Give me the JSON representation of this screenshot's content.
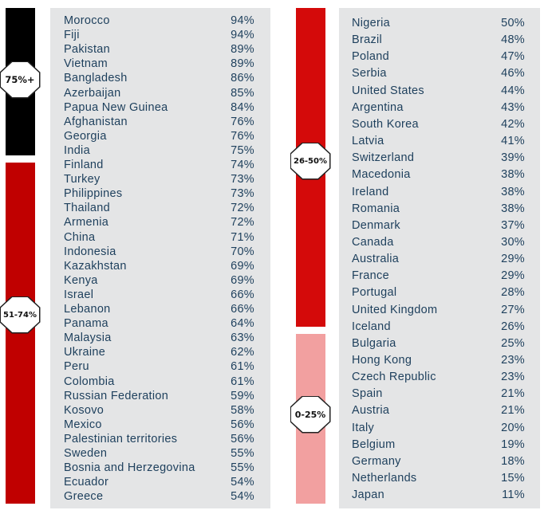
{
  "chart_data": {
    "type": "table",
    "bands": [
      {
        "label": "75%+",
        "color": "#000000"
      },
      {
        "label": "51-74%",
        "color": "#c00000"
      },
      {
        "label": "26-50%",
        "color": "#d40a0a"
      },
      {
        "label": "0-25%",
        "color": "#f2a0a0"
      }
    ],
    "left_rows": [
      {
        "country": "Morocco",
        "value": "94%"
      },
      {
        "country": "Fiji",
        "value": "94%"
      },
      {
        "country": "Pakistan",
        "value": "89%"
      },
      {
        "country": "Vietnam",
        "value": "89%"
      },
      {
        "country": "Bangladesh",
        "value": "86%"
      },
      {
        "country": "Azerbaijan",
        "value": "85%"
      },
      {
        "country": "Papua New Guinea",
        "value": "84%"
      },
      {
        "country": "Afghanistan",
        "value": "76%"
      },
      {
        "country": "Georgia",
        "value": "76%"
      },
      {
        "country": "India",
        "value": "75%"
      },
      {
        "country": "Finland",
        "value": "74%"
      },
      {
        "country": "Turkey",
        "value": "73%"
      },
      {
        "country": "Philippines",
        "value": "73%"
      },
      {
        "country": "Thailand",
        "value": "72%"
      },
      {
        "country": "Armenia",
        "value": "72%"
      },
      {
        "country": "China",
        "value": "71%"
      },
      {
        "country": "Indonesia",
        "value": "70%"
      },
      {
        "country": "Kazakhstan",
        "value": "69%"
      },
      {
        "country": "Kenya",
        "value": "69%"
      },
      {
        "country": "Israel",
        "value": "66%"
      },
      {
        "country": "Lebanon",
        "value": "66%"
      },
      {
        "country": "Panama",
        "value": "64%"
      },
      {
        "country": "Malaysia",
        "value": "63%"
      },
      {
        "country": "Ukraine",
        "value": "62%"
      },
      {
        "country": "Peru",
        "value": "61%"
      },
      {
        "country": "Colombia",
        "value": "61%"
      },
      {
        "country": "Russian Federation",
        "value": "59%"
      },
      {
        "country": "Kosovo",
        "value": "58%"
      },
      {
        "country": "Mexico",
        "value": "56%"
      },
      {
        "country": "Palestinian territories",
        "value": "56%"
      },
      {
        "country": "Sweden",
        "value": "55%"
      },
      {
        "country": "Bosnia and Herzegovina",
        "value": "55%"
      },
      {
        "country": "Ecuador",
        "value": "54%"
      },
      {
        "country": "Greece",
        "value": "54%"
      }
    ],
    "right_rows": [
      {
        "country": "Nigeria",
        "value": "50%"
      },
      {
        "country": "Brazil",
        "value": "48%"
      },
      {
        "country": "Poland",
        "value": "47%"
      },
      {
        "country": "Serbia",
        "value": "46%"
      },
      {
        "country": "United States",
        "value": "44%"
      },
      {
        "country": "Argentina",
        "value": "43%"
      },
      {
        "country": "South Korea",
        "value": "42%"
      },
      {
        "country": "Latvia",
        "value": "41%"
      },
      {
        "country": "Switzerland",
        "value": "39%"
      },
      {
        "country": "Macedonia",
        "value": "38%"
      },
      {
        "country": "Ireland",
        "value": "38%"
      },
      {
        "country": "Romania",
        "value": "38%"
      },
      {
        "country": "Denmark",
        "value": "37%"
      },
      {
        "country": "Canada",
        "value": "30%"
      },
      {
        "country": "Australia",
        "value": "29%"
      },
      {
        "country": "France",
        "value": "29%"
      },
      {
        "country": "Portugal",
        "value": "28%"
      },
      {
        "country": "United Kingdom",
        "value": "27%"
      },
      {
        "country": "Iceland",
        "value": "26%"
      },
      {
        "country": "Bulgaria",
        "value": "25%"
      },
      {
        "country": "Hong Kong",
        "value": "23%"
      },
      {
        "country": "Czech Republic",
        "value": "23%"
      },
      {
        "country": "Spain",
        "value": "21%"
      },
      {
        "country": "Austria",
        "value": "21%"
      },
      {
        "country": "Italy",
        "value": "20%"
      },
      {
        "country": "Belgium",
        "value": "19%"
      },
      {
        "country": "Germany",
        "value": "18%"
      },
      {
        "country": "Netherlands",
        "value": "15%"
      },
      {
        "country": "Japan",
        "value": "11%"
      }
    ]
  }
}
